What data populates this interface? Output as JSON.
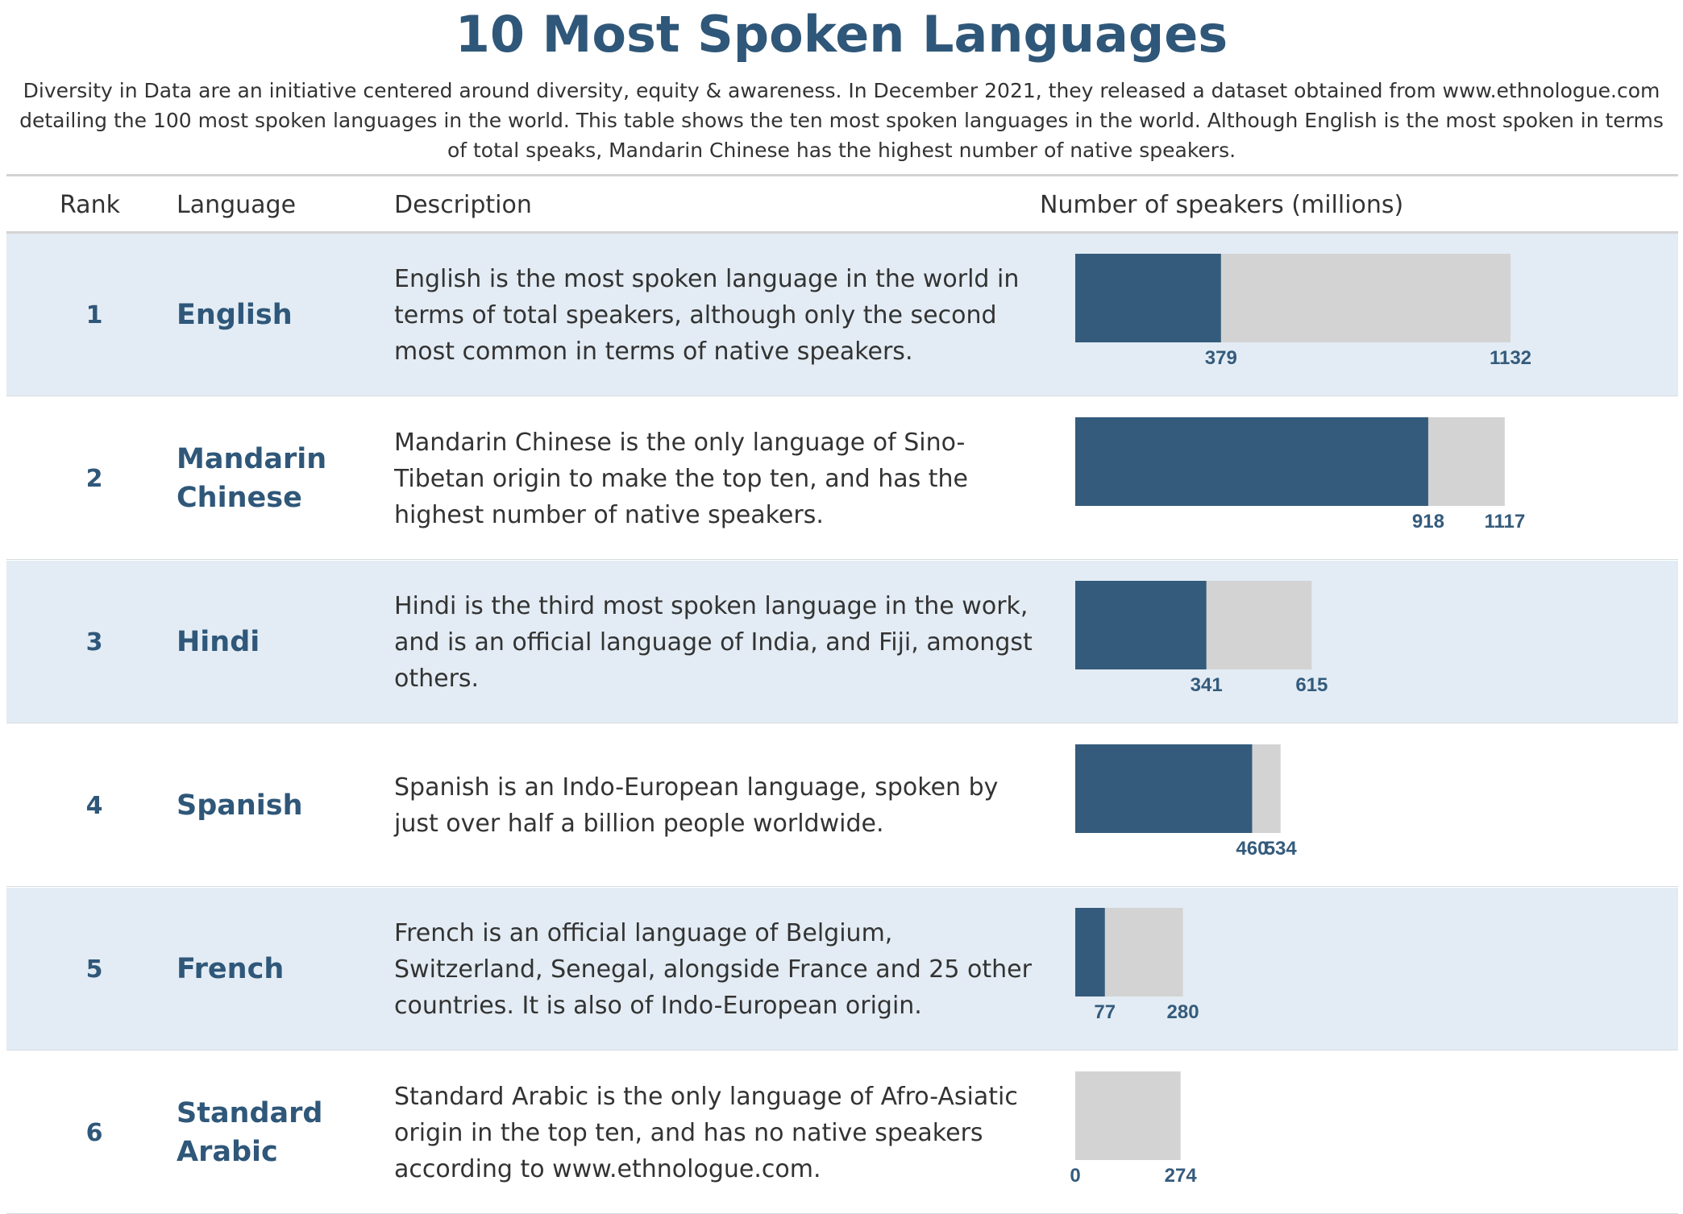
{
  "title": "10 Most Spoken Languages",
  "subtitle": "Diversity in Data are an initiative centered around diversity, equity & awareness. In December 2021, they released a dataset obtained from www.ethnologue.com detailing the 100 most spoken languages in the world. This table shows the ten most spoken languages in the world. Although English is the most spoken in terms of total speaks, Mandarin Chinese has the highest number of native speakers.",
  "columns": {
    "rank": "Rank",
    "language": "Language",
    "description": "Description",
    "speakers": "Number of speakers (millions)"
  },
  "colors": {
    "native_bar": "#345b7c",
    "total_bar": "#d3d3d3",
    "label": "#345b7c",
    "title": "#2f5779",
    "row_shade": "#e3ecf4"
  },
  "rows": [
    {
      "rank": "1",
      "language": "English",
      "description": "English is the most spoken language in the world in terms of total speakers, although only the second most common in terms of native speakers."
    },
    {
      "rank": "2",
      "language": "Mandarin Chinese",
      "description": "Mandarin Chinese is the only language of Sino-Tibetan origin to make the top ten, and has the highest number of native speakers."
    },
    {
      "rank": "3",
      "language": "Hindi",
      "description": "Hindi is the third most spoken language in the work, and is an official language of India, and Fiji, amongst others."
    },
    {
      "rank": "4",
      "language": "Spanish",
      "description": "Spanish is an Indo-European language, spoken by just over half a billion people worldwide."
    },
    {
      "rank": "5",
      "language": "French",
      "description": "French is an official language of Belgium, Switzerland, Senegal, alongside France and 25 other countries. It is also of Indo-European origin."
    },
    {
      "rank": "6",
      "language": "Standard Arabic",
      "description": "Standard Arabic is the only language of Afro-Asiatic origin in the top ten, and has no native speakers according to www.ethnologue.com."
    }
  ],
  "chart_data": {
    "type": "bar",
    "orientation": "horizontal",
    "categories": [
      "English",
      "Mandarin Chinese",
      "Hindi",
      "Spanish",
      "French",
      "Standard Arabic"
    ],
    "series": [
      {
        "values": [
          379,
          918,
          341,
          460,
          77,
          0
        ]
      },
      {
        "values": [
          1132,
          1117,
          615,
          534,
          280,
          274
        ]
      }
    ],
    "xlim": [
      0,
      1132
    ],
    "grid": false,
    "legend": "none"
  }
}
